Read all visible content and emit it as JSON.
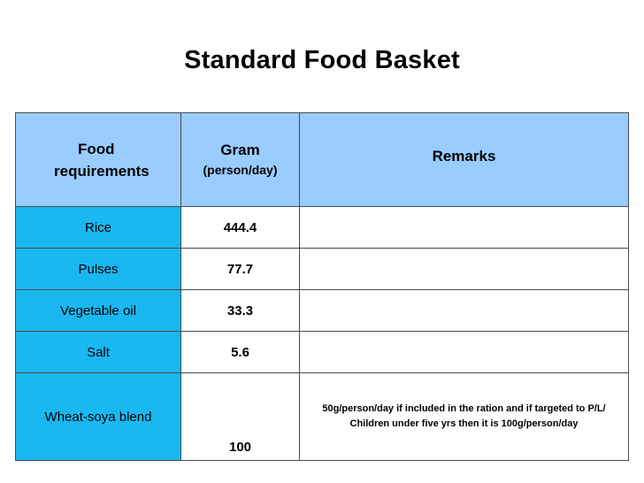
{
  "title": "Standard Food Basket",
  "table": {
    "headers": {
      "food_line1": "Food",
      "food_line2": "requirements",
      "gram_line1": "Gram",
      "gram_line2": "(person/day)",
      "remarks": "Remarks"
    },
    "rows": [
      {
        "food": "Rice",
        "gram": "444.4",
        "remarks": ""
      },
      {
        "food": "Pulses",
        "gram": "77.7",
        "remarks": ""
      },
      {
        "food": "Vegetable oil",
        "gram": "33.3",
        "remarks": ""
      },
      {
        "food": "Salt",
        "gram": "5.6",
        "remarks": ""
      },
      {
        "food": "Wheat-soya blend",
        "gram": "100",
        "remarks": "50g/person/day if included in the ration and if targeted to P/L/ Children under five yrs then it is 100g/person/day"
      }
    ]
  },
  "colors": {
    "header_bg": "#99ccff",
    "food_column_bg": "#1ab8f0",
    "border": "#4a4a4a"
  }
}
